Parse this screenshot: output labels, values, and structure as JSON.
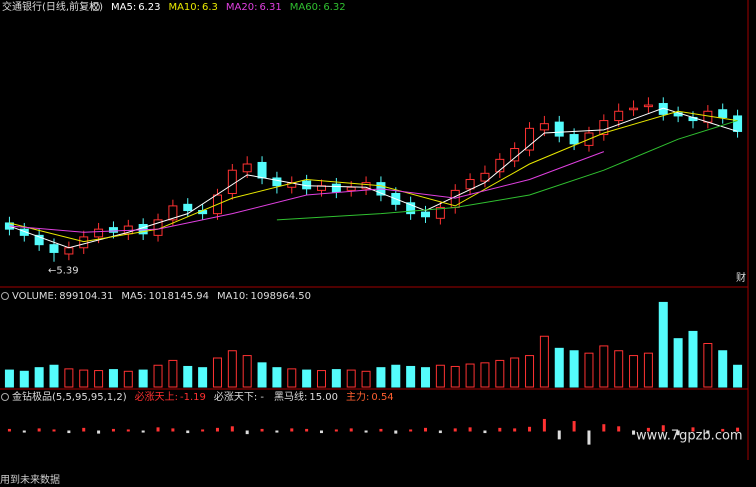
{
  "chart_data": [
    {
      "type": "candlestick",
      "title": "交通银行(日线,前复权)",
      "legend": [
        {
          "label": "MA5:",
          "value": 6.23,
          "color": "#ffffff"
        },
        {
          "label": "MA10:",
          "value": 6.3,
          "color": "#e8e800"
        },
        {
          "label": "MA20:",
          "value": 6.31,
          "color": "#e040e0"
        },
        {
          "label": "MA60:",
          "value": 6.32,
          "color": "#30c030"
        }
      ],
      "open": [
        5.64,
        5.6,
        5.56,
        5.5,
        5.44,
        5.48,
        5.55,
        5.61,
        5.57,
        5.63,
        5.56,
        5.66,
        5.76,
        5.72,
        5.7,
        5.83,
        5.97,
        6.03,
        5.93,
        5.87,
        5.91,
        5.85,
        5.89,
        5.85,
        5.86,
        5.9,
        5.83,
        5.77,
        5.71,
        5.67,
        5.74,
        5.86,
        5.91,
        5.97,
        6.04,
        6.11,
        6.24,
        6.29,
        6.21,
        6.14,
        6.21,
        6.3,
        6.37,
        6.39,
        6.41,
        6.35,
        6.32,
        6.29,
        6.37,
        6.33
      ],
      "high": [
        5.68,
        5.64,
        5.6,
        5.54,
        5.52,
        5.59,
        5.64,
        5.65,
        5.66,
        5.67,
        5.7,
        5.79,
        5.8,
        5.76,
        5.86,
        6.02,
        6.07,
        6.07,
        5.97,
        5.94,
        5.95,
        5.92,
        5.93,
        5.91,
        5.94,
        5.94,
        5.87,
        5.81,
        5.75,
        5.78,
        5.89,
        5.96,
        6.01,
        6.09,
        6.16,
        6.29,
        6.33,
        6.33,
        6.25,
        6.26,
        6.34,
        6.41,
        6.43,
        6.45,
        6.45,
        6.39,
        6.36,
        6.4,
        6.41,
        6.37
      ],
      "low": [
        5.56,
        5.52,
        5.46,
        5.39,
        5.4,
        5.44,
        5.51,
        5.54,
        5.53,
        5.53,
        5.52,
        5.62,
        5.68,
        5.66,
        5.66,
        5.79,
        5.93,
        5.89,
        5.83,
        5.83,
        5.82,
        5.81,
        5.8,
        5.81,
        5.82,
        5.78,
        5.72,
        5.66,
        5.64,
        5.63,
        5.7,
        5.82,
        5.87,
        5.93,
        6.0,
        6.07,
        6.2,
        6.16,
        6.11,
        6.1,
        6.17,
        6.26,
        6.33,
        6.35,
        6.3,
        6.29,
        6.25,
        6.25,
        6.28,
        6.19
      ],
      "close": [
        5.6,
        5.56,
        5.5,
        5.45,
        5.48,
        5.55,
        5.6,
        5.58,
        5.62,
        5.57,
        5.66,
        5.75,
        5.72,
        5.7,
        5.82,
        5.98,
        6.02,
        5.93,
        5.88,
        5.9,
        5.86,
        5.88,
        5.84,
        5.87,
        5.9,
        5.82,
        5.76,
        5.7,
        5.68,
        5.74,
        5.85,
        5.92,
        5.96,
        6.05,
        6.12,
        6.25,
        6.28,
        6.2,
        6.15,
        6.22,
        6.3,
        6.36,
        6.38,
        6.4,
        6.34,
        6.33,
        6.3,
        6.36,
        6.32,
        6.23
      ],
      "series": [
        {
          "color": "#ffffff",
          "x": [
            0,
            4,
            8,
            12,
            16,
            20,
            24,
            28,
            32,
            36,
            40,
            44,
            49
          ],
          "values": [
            5.62,
            5.48,
            5.58,
            5.7,
            5.95,
            5.88,
            5.87,
            5.72,
            5.9,
            6.22,
            6.24,
            6.38,
            6.23
          ]
        },
        {
          "color": "#e8e800",
          "x": [
            0,
            5,
            10,
            15,
            20,
            25,
            30,
            35,
            40,
            45,
            49
          ],
          "values": [
            5.64,
            5.52,
            5.6,
            5.8,
            5.92,
            5.88,
            5.75,
            6.02,
            6.22,
            6.36,
            6.3
          ]
        },
        {
          "color": "#e040e0",
          "x": [
            0,
            5,
            10,
            15,
            20,
            25,
            30,
            35,
            40
          ],
          "values": [
            5.62,
            5.58,
            5.6,
            5.7,
            5.82,
            5.86,
            5.8,
            5.92,
            6.1
          ]
        },
        {
          "color": "#30c030",
          "x": [
            18,
            25,
            30,
            35,
            40,
            45,
            49
          ],
          "values": [
            5.66,
            5.7,
            5.74,
            5.82,
            5.98,
            6.18,
            6.3
          ]
        }
      ],
      "ylim": [
        5.24,
        7.0
      ],
      "low_label": "←5.39",
      "side_label": "财"
    },
    {
      "type": "bar",
      "title": "VOLUME:",
      "legend": [
        {
          "label": "VOLUME:",
          "value": 899104.31,
          "color": "#dddddd"
        },
        {
          "label": "MA5:",
          "value": 1018145.94,
          "color": "#dddddd"
        },
        {
          "label": "MA10:",
          "value": 1098964.5,
          "value_label": "1098964.50",
          "color": "#dddddd"
        }
      ],
      "values": [
        700000,
        650000,
        800000,
        900000,
        750000,
        700000,
        680000,
        720000,
        650000,
        700000,
        900000,
        1100000,
        850000,
        800000,
        1200000,
        1500000,
        1300000,
        1000000,
        800000,
        750000,
        700000,
        680000,
        720000,
        700000,
        650000,
        800000,
        900000,
        850000,
        800000,
        900000,
        850000,
        950000,
        1000000,
        1100000,
        1200000,
        1300000,
        2100000,
        1600000,
        1500000,
        1400000,
        1700000,
        1500000,
        1300000,
        1400000,
        3500000,
        2000000,
        2300000,
        1800000,
        1500000,
        899104.31
      ],
      "ylim": [
        0,
        3600000
      ]
    },
    {
      "type": "bar",
      "title": "金钻极品(5,5,95,95,1,2)",
      "legend": [
        {
          "label": "必涨天上:",
          "value": -1.19,
          "color": "#ff3030"
        },
        {
          "label": "必涨天下: -",
          "color": "#dddddd"
        },
        {
          "label": "黑马线:",
          "value": 15,
          "value_label": "15.00",
          "color": "#dddddd"
        },
        {
          "label": "主力:",
          "value": 0.54,
          "color": "#ff6030"
        }
      ],
      "values": [
        0.3,
        -0.2,
        0.4,
        0.2,
        -0.3,
        0.5,
        -0.4,
        0.3,
        0.2,
        -0.2,
        0.6,
        0.4,
        -0.3,
        0.2,
        0.5,
        0.8,
        -0.5,
        0.3,
        -0.2,
        0.4,
        0.3,
        -0.3,
        0.2,
        0.4,
        -0.2,
        0.3,
        -0.4,
        0.2,
        0.5,
        -0.3,
        0.4,
        0.6,
        -0.3,
        0.5,
        0.4,
        0.7,
        2.2,
        -1.5,
        1.8,
        -2.5,
        1.2,
        0.8,
        -0.6,
        0.5,
        1.0,
        -0.7,
        0.6,
        -0.4,
        0.3,
        0.54
      ],
      "ylim": [
        -4,
        4
      ],
      "note": "用到未来数据"
    }
  ],
  "watermark": "www.7gpzb.com"
}
